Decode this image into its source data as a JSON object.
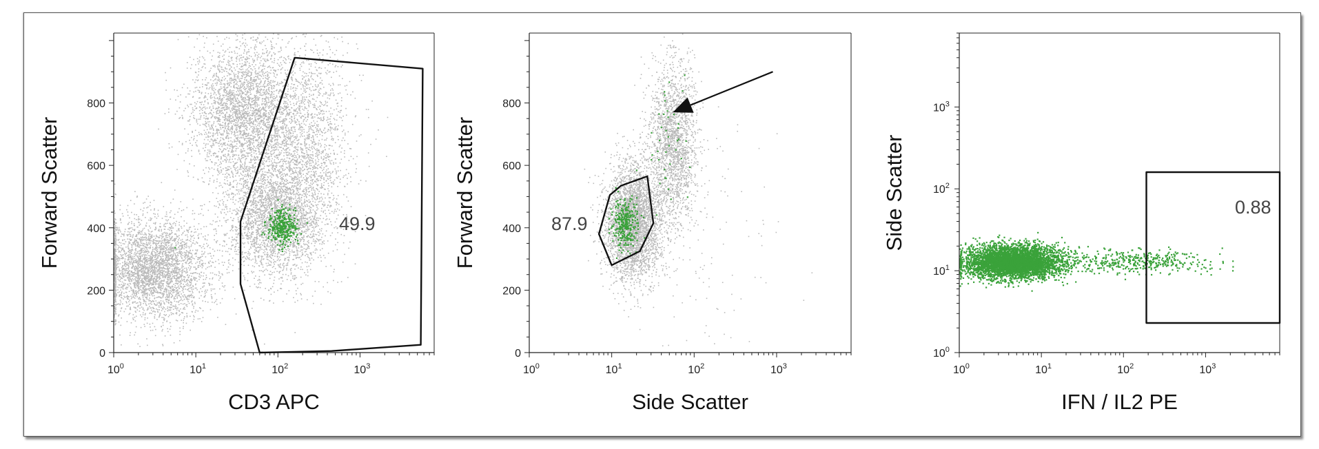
{
  "colors": {
    "background_events": "#b9b9b9",
    "gated_events": "#3aa23a",
    "gate_stroke": "#111111",
    "axis": "#222222"
  },
  "chart_data": [
    {
      "type": "scatter",
      "title": "",
      "xlabel": "CD3 APC",
      "ylabel": "Forward Scatter",
      "x_scale": "log",
      "x_range": [
        1,
        8000
      ],
      "x_ticks": [
        {
          "base": "10",
          "exp": "0",
          "value": 1
        },
        {
          "base": "10",
          "exp": "1",
          "value": 10
        },
        {
          "base": "10",
          "exp": "2",
          "value": 100
        },
        {
          "base": "10",
          "exp": "3",
          "value": 1000
        }
      ],
      "y_scale": "linear",
      "y_range": [
        0,
        1024
      ],
      "y_ticks": [
        0,
        200,
        400,
        600,
        800
      ],
      "gate": {
        "label": "49.9",
        "vertices": [
          [
            160,
            945
          ],
          [
            5800,
            910
          ],
          [
            5500,
            25
          ],
          [
            450,
            5
          ],
          [
            60,
            0
          ],
          [
            35,
            220
          ],
          [
            35,
            420
          ]
        ]
      },
      "series": [
        {
          "color": "gray",
          "clusters": [
            {
              "cx": 3,
              "cy": 270,
              "sx": 0.35,
              "sy": 80,
              "n": 3500
            },
            {
              "cx": 40,
              "cy": 770,
              "sx": 0.32,
              "sy": 120,
              "n": 3200
            },
            {
              "cx": 90,
              "cy": 430,
              "sx": 0.3,
              "sy": 90,
              "n": 2600
            },
            {
              "cx": 200,
              "cy": 650,
              "sx": 0.3,
              "sy": 170,
              "n": 1800
            }
          ]
        },
        {
          "color": "green",
          "clusters": [
            {
              "cx": 110,
              "cy": 405,
              "sx": 0.09,
              "sy": 28,
              "n": 320
            },
            {
              "cx": 5.5,
              "cy": 340,
              "sx": 0.01,
              "sy": 2,
              "n": 1
            }
          ]
        }
      ]
    },
    {
      "type": "scatter",
      "title": "",
      "xlabel": "Side Scatter",
      "ylabel": "Forward Scatter",
      "x_scale": "log",
      "x_range": [
        1,
        8000
      ],
      "x_ticks": [
        {
          "base": "10",
          "exp": "0",
          "value": 1
        },
        {
          "base": "10",
          "exp": "1",
          "value": 10
        },
        {
          "base": "10",
          "exp": "2",
          "value": 100
        },
        {
          "base": "10",
          "exp": "3",
          "value": 1000
        }
      ],
      "y_scale": "linear",
      "y_range": [
        0,
        1024
      ],
      "y_ticks": [
        0,
        200,
        400,
        600,
        800
      ],
      "gate": {
        "label": "87.9",
        "vertices": [
          [
            7,
            380
          ],
          [
            9.5,
            505
          ],
          [
            13,
            535
          ],
          [
            27,
            565
          ],
          [
            32,
            415
          ],
          [
            22,
            325
          ],
          [
            10,
            280
          ]
        ]
      },
      "arrow": {
        "from": [
          900,
          900
        ],
        "to": [
          55,
          770
        ]
      },
      "series": [
        {
          "color": "gray",
          "clusters": [
            {
              "cx": 18,
              "cy": 420,
              "sx": 0.17,
              "sy": 90,
              "n": 3600
            },
            {
              "cx": 55,
              "cy": 680,
              "sx": 0.15,
              "sy": 130,
              "n": 2000
            },
            {
              "cx": 100,
              "cy": 300,
              "sx": 0.5,
              "sy": 200,
              "n": 120
            }
          ]
        },
        {
          "color": "green",
          "clusters": [
            {
              "cx": 14,
              "cy": 415,
              "sx": 0.08,
              "sy": 40,
              "n": 300
            },
            {
              "cx": 45,
              "cy": 700,
              "sx": 0.12,
              "sy": 130,
              "n": 40
            }
          ]
        }
      ]
    },
    {
      "type": "scatter",
      "title": "",
      "xlabel": "IFN / IL2 PE",
      "ylabel": "Side Scatter",
      "x_scale": "log",
      "x_range": [
        1,
        8000
      ],
      "x_ticks": [
        {
          "base": "10",
          "exp": "0",
          "value": 1
        },
        {
          "base": "10",
          "exp": "1",
          "value": 10
        },
        {
          "base": "10",
          "exp": "2",
          "value": 100
        },
        {
          "base": "10",
          "exp": "3",
          "value": 1000
        }
      ],
      "y_scale": "log",
      "y_range": [
        1,
        8000
      ],
      "y_ticks": [
        {
          "base": "10",
          "exp": "0",
          "value": 1
        },
        {
          "base": "10",
          "exp": "1",
          "value": 10
        },
        {
          "base": "10",
          "exp": "2",
          "value": 100
        },
        {
          "base": "10",
          "exp": "3",
          "value": 1000
        }
      ],
      "gate": {
        "label": "0.88",
        "vertices": [
          [
            190,
            160
          ],
          [
            8000,
            160
          ],
          [
            8000,
            2.3
          ],
          [
            190,
            2.3
          ]
        ]
      },
      "series": [
        {
          "color": "green",
          "clusters": [
            {
              "cx": 4.5,
              "cy": 13,
              "sx": 0.3,
              "sy": 0.1,
              "n": 4200
            },
            {
              "cx": 150,
              "cy": 13,
              "sx": 0.45,
              "sy": 0.07,
              "n": 420
            }
          ]
        }
      ]
    }
  ]
}
